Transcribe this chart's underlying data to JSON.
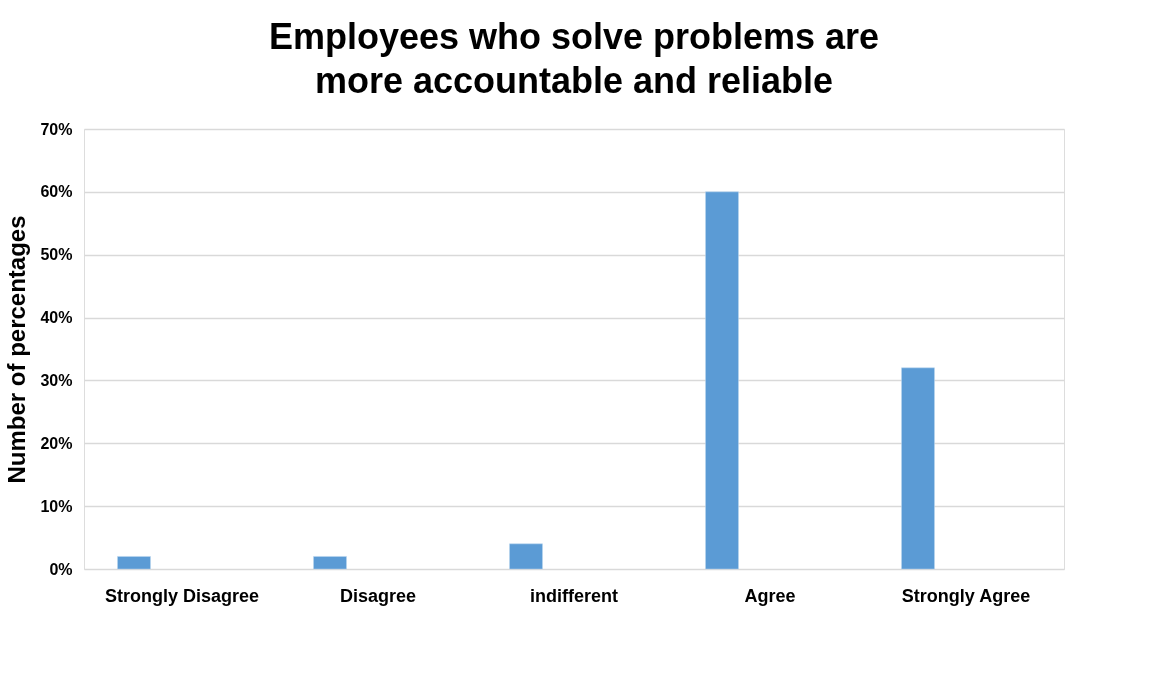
{
  "chart_data": {
    "type": "bar",
    "title": "Employees who solve problems are more accountable and reliable",
    "ylabel": "Number of percentages",
    "categories": [
      "Strongly Disagree",
      "Disagree",
      "indifferent",
      "Agree",
      "Strongly Agree"
    ],
    "values": [
      2,
      2,
      4,
      60,
      32
    ],
    "color": "#5b9bd5",
    "ylim": [
      0,
      70
    ],
    "yticks": [
      {
        "value": 0,
        "label": "0%"
      },
      {
        "value": 10,
        "label": "10%"
      },
      {
        "value": 20,
        "label": "20%"
      },
      {
        "value": 30,
        "label": "30%"
      },
      {
        "value": 40,
        "label": "40%"
      },
      {
        "value": 50,
        "label": "50%"
      },
      {
        "value": 60,
        "label": "60%"
      },
      {
        "value": 70,
        "label": "70%"
      }
    ],
    "grid": "y"
  }
}
